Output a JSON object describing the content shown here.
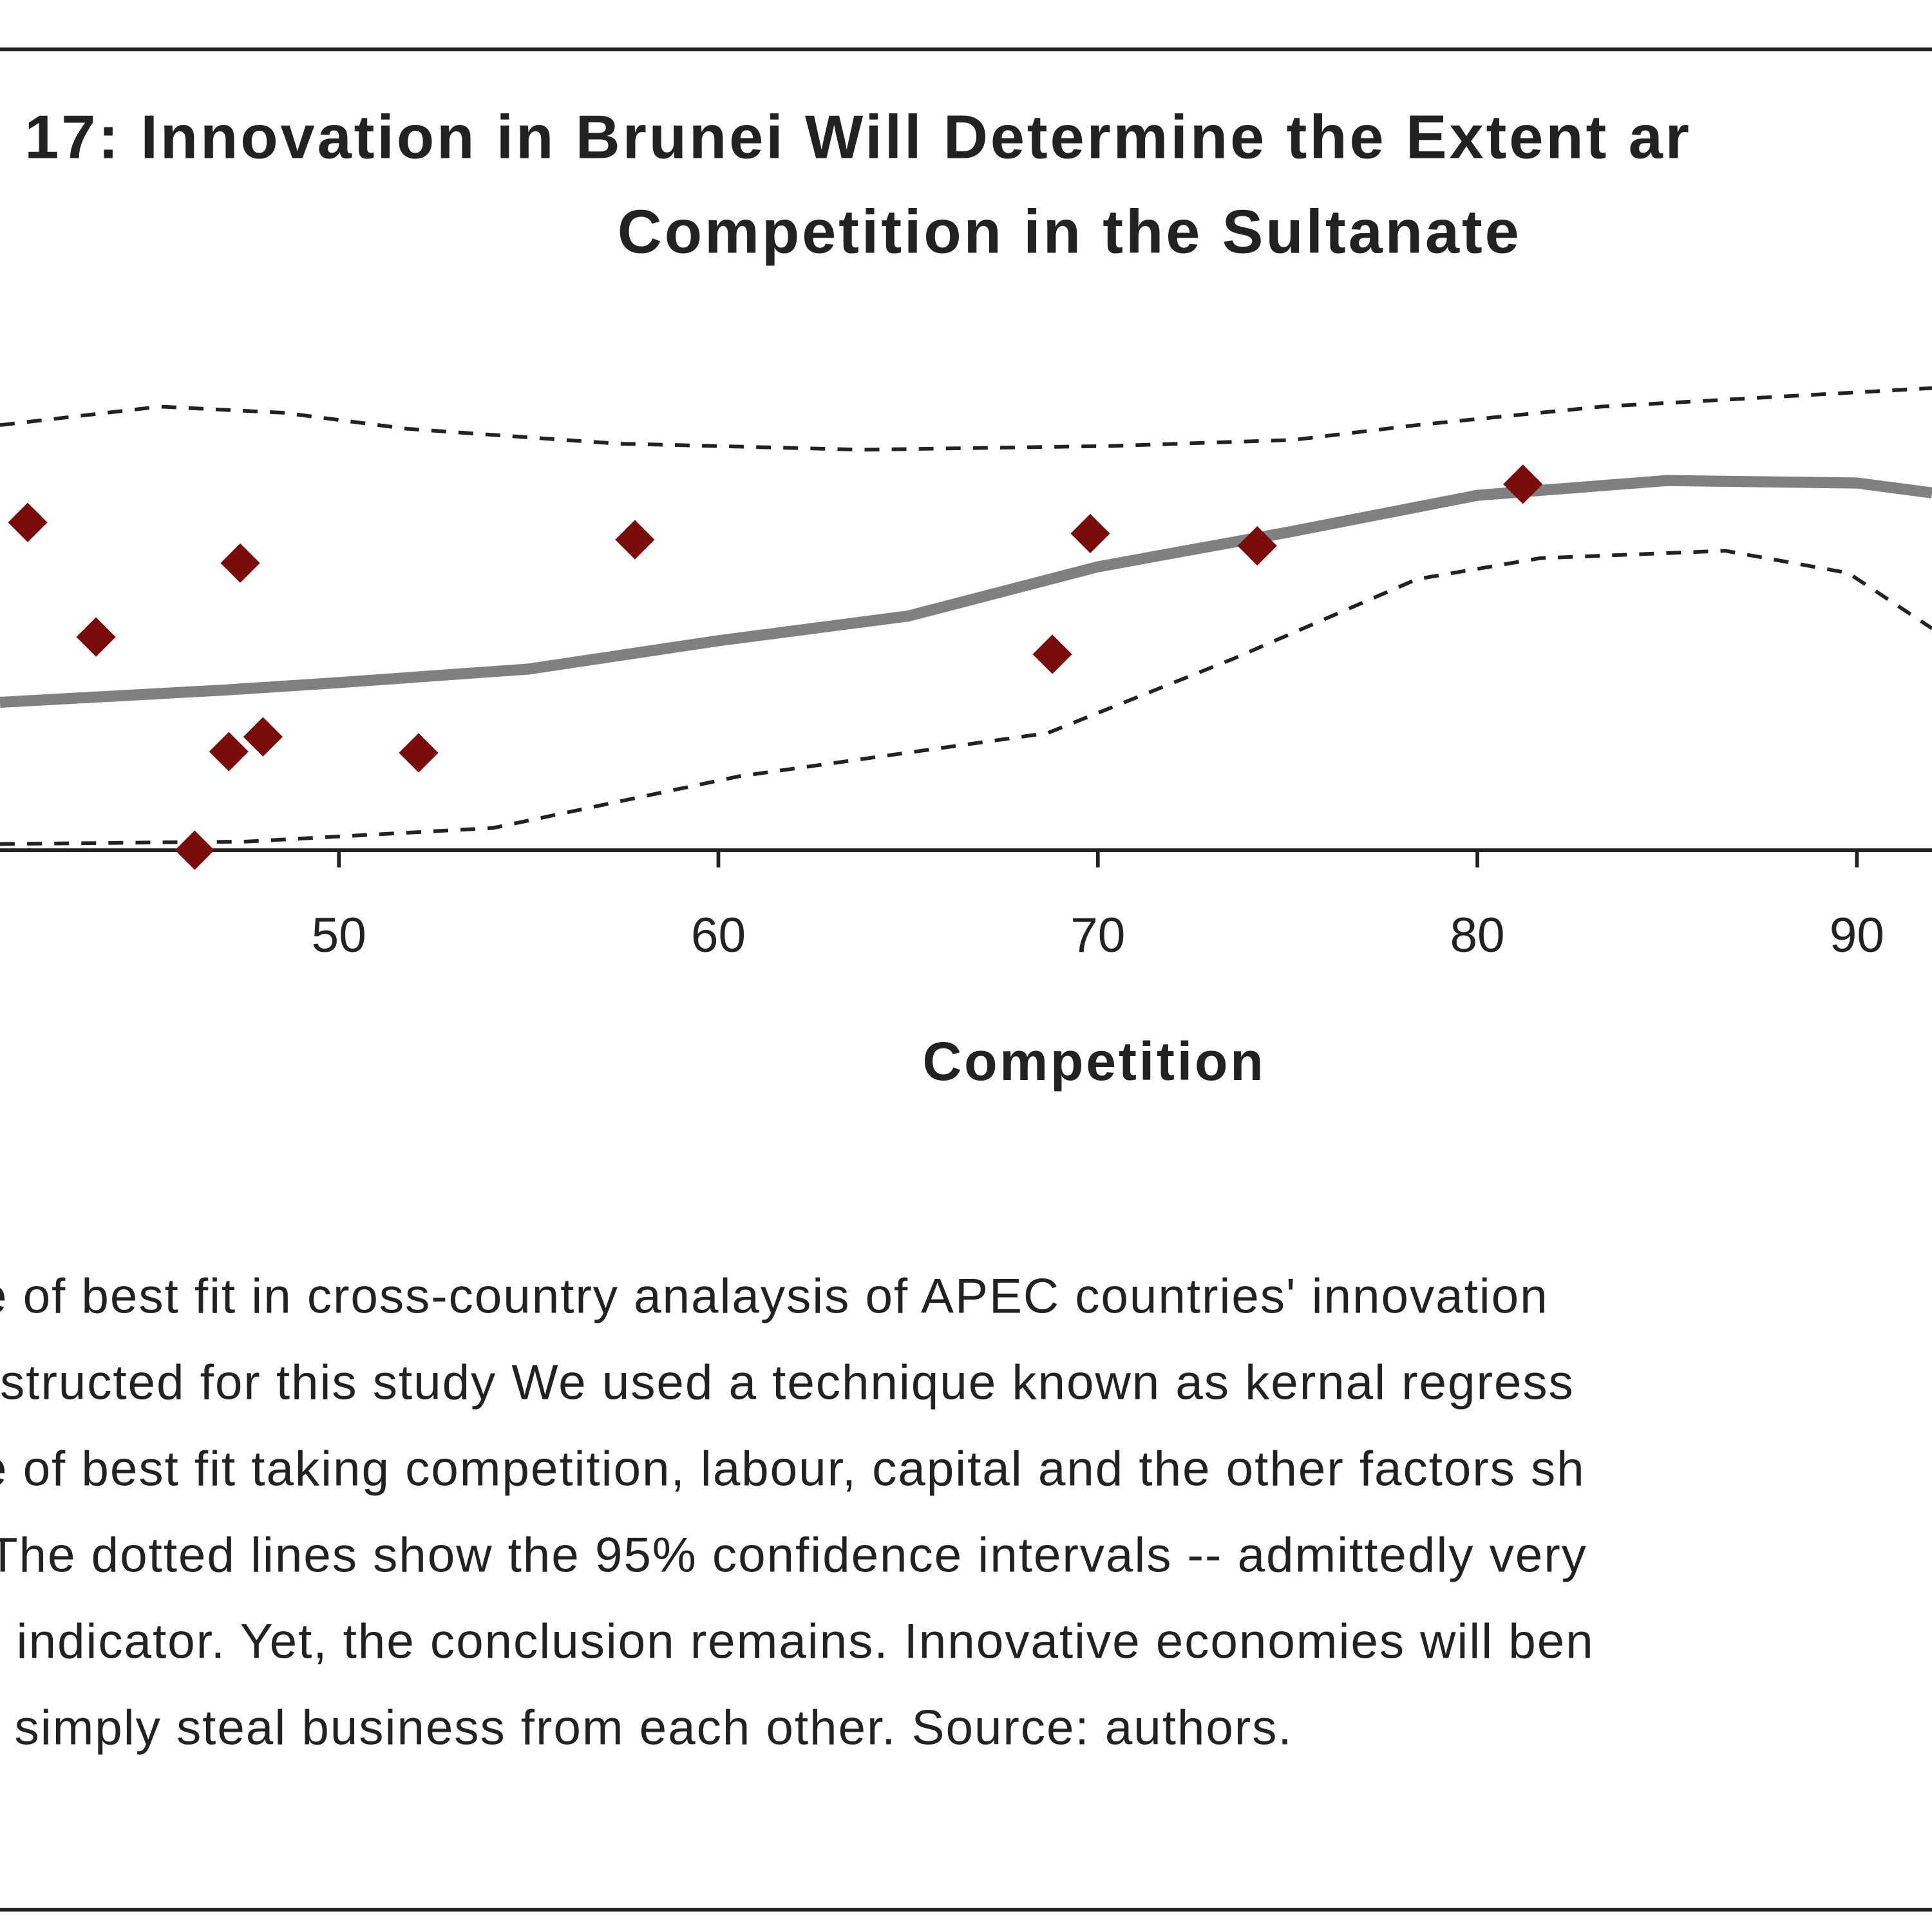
{
  "chart_data": {
    "type": "scatter",
    "title": [
      "17: Innovation in Brunei Will Determine the Extent ar",
      "Competition in the Sultanate"
    ],
    "x_label": "Competition",
    "xlim": [
      41.07,
      91.98
    ],
    "xticks": [
      50,
      60,
      70,
      80,
      90
    ],
    "ylim": [
      0,
      100
    ],
    "series": [
      {
        "type": "scatter",
        "color": "#7b0c0c",
        "x": [
          41.8,
          43.6,
          47.4,
          47.1,
          48.0,
          46.2,
          52.1,
          57.8,
          68.8,
          69.8,
          74.2,
          81.2
        ],
        "values": [
          66.5,
          43.25,
          58.25,
          20,
          23,
          0,
          19.75,
          63,
          39.75,
          64.25,
          61.75,
          74.25
        ]
      },
      {
        "type": "line",
        "color": "#808080",
        "x": [
          41.07,
          47,
          50,
          55,
          60,
          65,
          70,
          75,
          80,
          85,
          90,
          91.98
        ],
        "values": [
          30,
          32.5,
          34,
          36.75,
          42.5,
          47.5,
          57.5,
          64.5,
          72,
          75,
          74.5,
          72.5
        ]
      },
      {
        "type": "line",
        "color": "#222222",
        "dashed": true,
        "x": [
          41.07,
          45.29,
          48.54,
          51.79,
          57.31,
          63.8,
          70.3,
          75.16,
          78.4,
          83.28,
          91.98
        ],
        "values": [
          86.25,
          90,
          88.75,
          85.5,
          82.5,
          81.25,
          82,
          83.25,
          86.25,
          90,
          93.75
        ]
      },
      {
        "type": "line",
        "color": "#222222",
        "dashed": true,
        "x": [
          41.07,
          47.56,
          54.06,
          60.55,
          68.67,
          73.54,
          78.41,
          81.66,
          86.53,
          89.77,
          91.98
        ],
        "values": [
          1.25,
          1.75,
          4.5,
          15,
          23.75,
          38.75,
          55,
          59.25,
          60.75,
          56.25,
          45
        ]
      }
    ]
  },
  "caption": [
    "ne of best fit in cross-country analaysis of APEC countries' innovation",
    "structed for this study We used a technique known as kernal regress",
    "ne of best fit taking competition, labour, capital and the other factors sh",
    "The dotted lines show the 95% confidence intervals -- admittedly very",
    "n indicator. Yet, the conclusion remains. Innovative economies will ben",
    "ill simply steal business from each other. Source: authors."
  ]
}
